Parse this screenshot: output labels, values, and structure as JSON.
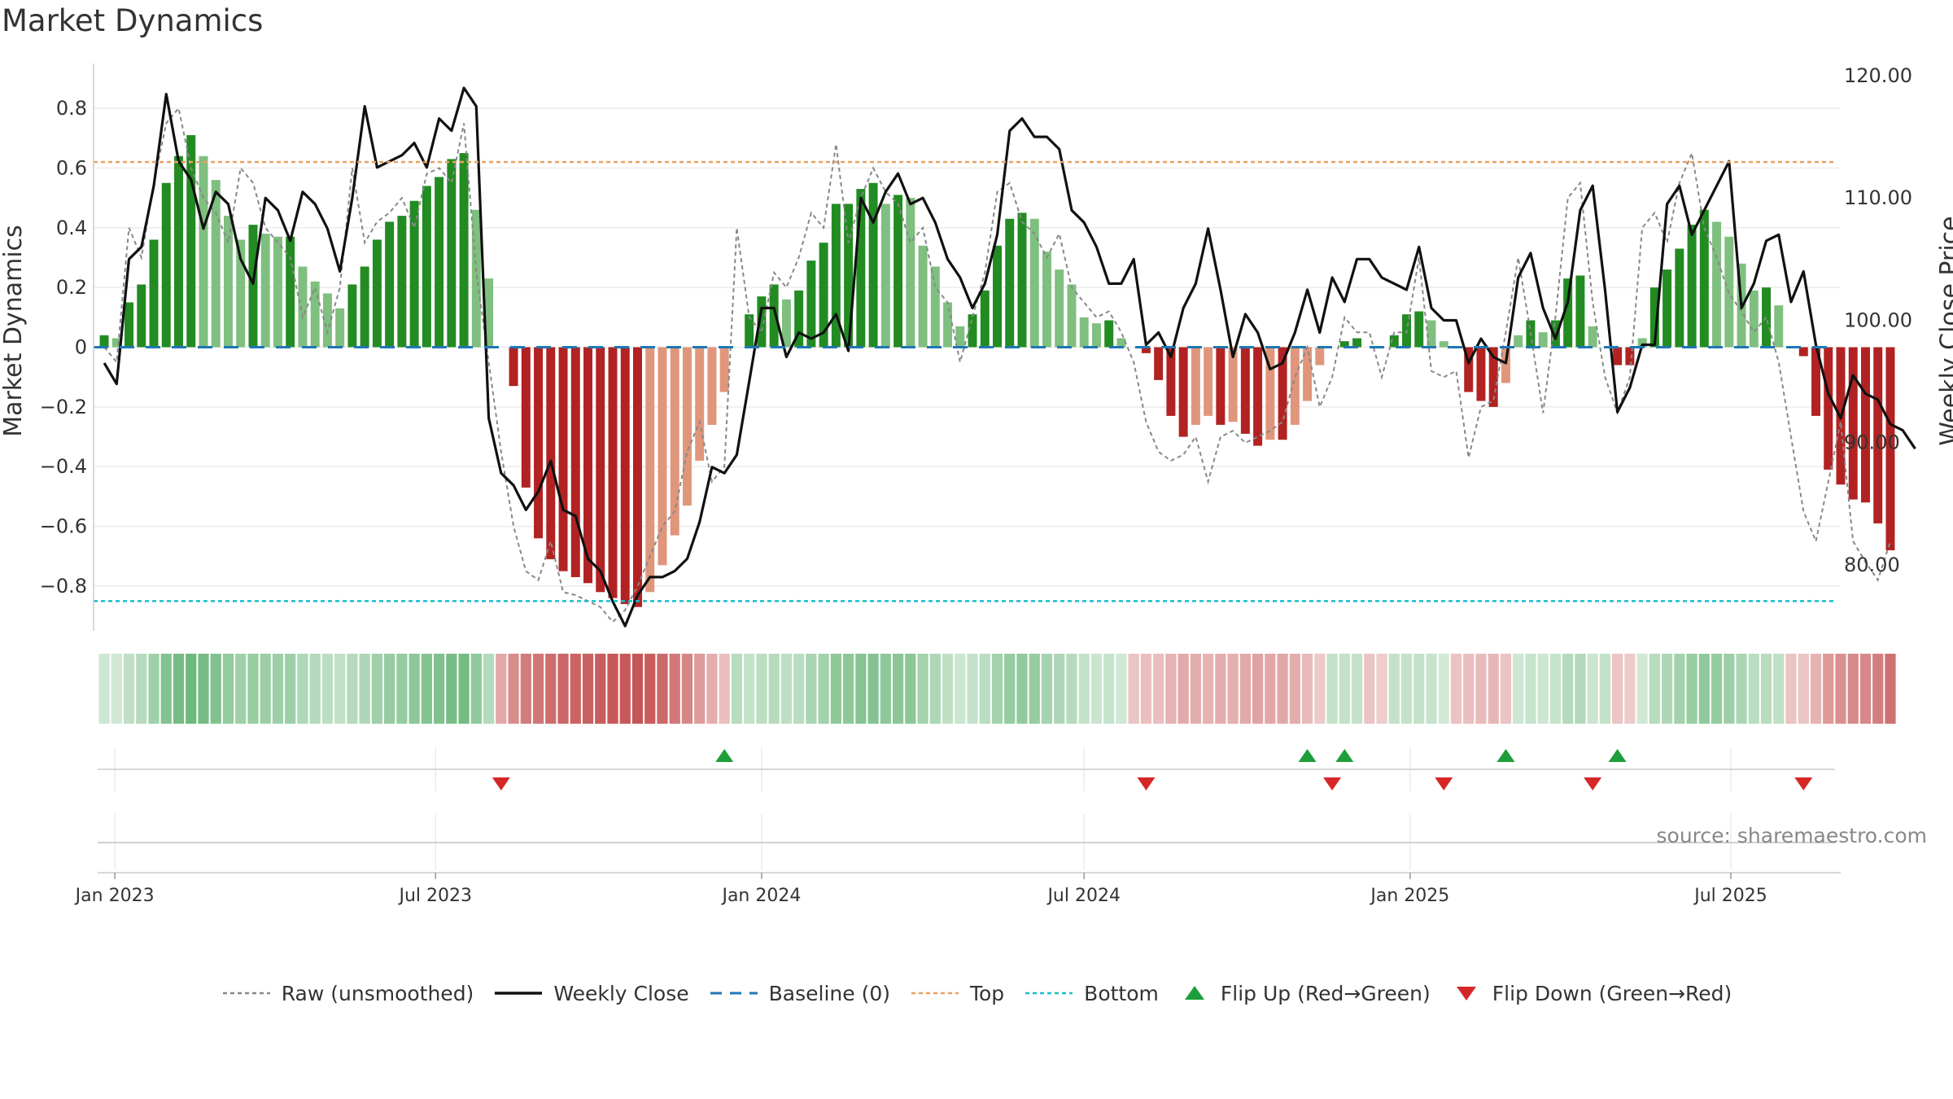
{
  "title": "Market Dynamics",
  "source": "source: sharemaestro.com",
  "colors": {
    "green_strong": "#228b22",
    "green_light": "#7fbf7f",
    "red_strong": "#b22222",
    "red_light": "#e0967a",
    "close_line": "#111111",
    "raw_line": "#888888",
    "baseline": "#1f77b4",
    "top": "#e8a060",
    "bottom": "#17becf",
    "flip_up": "#1e9e3a",
    "flip_down": "#d62728"
  },
  "legend": [
    {
      "key": "raw",
      "label": "Raw (unsmoothed)",
      "icon": "dotted-line"
    },
    {
      "key": "close",
      "label": "Weekly Close",
      "icon": "solid-line"
    },
    {
      "key": "baseline",
      "label": "Baseline (0)",
      "icon": "dashed-line"
    },
    {
      "key": "top",
      "label": "Top",
      "icon": "dotted-line"
    },
    {
      "key": "bottom",
      "label": "Bottom",
      "icon": "dotted-line"
    },
    {
      "key": "flip_up",
      "label": "Flip Up (Red→Green)",
      "icon": "triangle-up"
    },
    {
      "key": "flip_down",
      "label": "Flip Down (Green→Red)",
      "icon": "triangle-down"
    }
  ],
  "chart_data": {
    "type": "bar",
    "title": "Market Dynamics",
    "ylabel": "Market Dynamics",
    "y2label": "Weekly Close Price",
    "ylim": [
      -0.95,
      0.95
    ],
    "y2lim": [
      74.6,
      121.0
    ],
    "yticks": [
      0.8,
      0.6,
      0.4,
      0.2,
      0,
      -0.2,
      -0.4,
      -0.6,
      -0.8
    ],
    "ytick_labels": [
      "0.8",
      "0.6",
      "0.4",
      "0.2",
      "0",
      "−0.2",
      "−0.4",
      "−0.6",
      "−0.8"
    ],
    "y2ticks": [
      120,
      110,
      100,
      90,
      80
    ],
    "y2tick_labels": [
      "120.00",
      "110.00",
      "100.00",
      "90.00",
      "80.00"
    ],
    "xticks": [
      "2023-01-01",
      "2023-07-01",
      "2024-01-01",
      "2024-07-01",
      "2025-01-01",
      "2025-07-01"
    ],
    "xtick_labels": [
      "Jan 2023",
      "Jul 2023",
      "Jan 2024",
      "Jul 2024",
      "Jan 2025",
      "Jul 2025"
    ],
    "first_week": "2022-12-26",
    "weeks": 144,
    "top_level": 0.62,
    "bottom_level": -0.85,
    "baseline": 0,
    "grid": true,
    "legend_position": "bottom",
    "bar_values": [
      0.04,
      0.03,
      0.15,
      0.21,
      0.36,
      0.55,
      0.64,
      0.71,
      0.64,
      0.56,
      0.44,
      0.36,
      0.41,
      0.38,
      0.37,
      0.37,
      0.27,
      0.22,
      0.18,
      0.13,
      0.21,
      0.27,
      0.36,
      0.42,
      0.44,
      0.49,
      0.54,
      0.57,
      0.63,
      0.65,
      0.46,
      0.23,
      0,
      -0.13,
      -0.47,
      -0.64,
      -0.71,
      -0.75,
      -0.77,
      -0.79,
      -0.82,
      -0.84,
      -0.86,
      -0.87,
      -0.82,
      -0.73,
      -0.63,
      -0.53,
      -0.38,
      -0.26,
      -0.15,
      0,
      0.11,
      0.17,
      0.21,
      0.16,
      0.19,
      0.29,
      0.35,
      0.48,
      0.48,
      0.53,
      0.55,
      0.48,
      0.51,
      0.5,
      0.34,
      0.27,
      0.15,
      0.07,
      0.11,
      0.19,
      0.34,
      0.43,
      0.45,
      0.43,
      0.32,
      0.26,
      0.21,
      0.1,
      0.08,
      0.09,
      0.03,
      0,
      -0.02,
      -0.11,
      -0.23,
      -0.3,
      -0.26,
      -0.23,
      -0.26,
      -0.25,
      -0.29,
      -0.33,
      -0.31,
      -0.31,
      -0.26,
      -0.18,
      -0.06,
      0,
      0.02,
      0.03,
      0,
      0,
      0.04,
      0.11,
      0.12,
      0.09,
      0.02,
      0,
      -0.15,
      -0.18,
      -0.2,
      -0.12,
      0.04,
      0.09,
      0.05,
      0.09,
      0.23,
      0.24,
      0.07,
      0,
      -0.06,
      -0.06,
      0.03,
      0.2,
      0.26,
      0.33,
      0.41,
      0.46,
      0.42,
      0.37,
      0.28,
      0.19,
      0.2,
      0.14,
      0,
      -0.03,
      -0.23,
      -0.41,
      -0.46,
      -0.51,
      -0.52,
      -0.59,
      -0.68
    ],
    "weekly_close": [
      96.5,
      94.8,
      105.0,
      106.0,
      111.0,
      118.5,
      113.0,
      111.5,
      107.5,
      110.5,
      109.5,
      105.0,
      103.0,
      110.0,
      109.0,
      106.5,
      110.5,
      109.5,
      107.5,
      104.0,
      110.0,
      117.5,
      112.5,
      113.0,
      113.5,
      114.5,
      112.5,
      116.5,
      115.5,
      119.0,
      117.5,
      92.0,
      87.5,
      86.5,
      84.5,
      86.0,
      88.5,
      84.5,
      84.0,
      80.5,
      79.5,
      77.0,
      75.0,
      77.5,
      79.0,
      79.0,
      79.5,
      80.5,
      83.5,
      88.0,
      87.5,
      89.0,
      95.0,
      101.0,
      101.0,
      97.0,
      99.0,
      98.5,
      99.0,
      100.5,
      97.5,
      110.0,
      108.0,
      110.5,
      112.0,
      109.5,
      110.0,
      108.0,
      105.0,
      103.5,
      101.0,
      103.0,
      107.0,
      115.5,
      116.5,
      115.0,
      115.0,
      114.0,
      109.0,
      108.0,
      106.0,
      103.0,
      103.0,
      105.0,
      98.0,
      99.0,
      97.0,
      101.0,
      103.0,
      107.5,
      102.5,
      97.0,
      100.5,
      99.0,
      96.0,
      96.5,
      99.0,
      102.5,
      99.0,
      103.5,
      101.5,
      105.0,
      105.0,
      103.5,
      103.0,
      102.5,
      106.0,
      101.0,
      100.0,
      100.0,
      96.5,
      98.5,
      97.0,
      96.5,
      103.5,
      105.5,
      101.0,
      98.5,
      101.5,
      109.0,
      111.0,
      102.5,
      92.5,
      94.5,
      98.0,
      98.0,
      109.5,
      111.0,
      107.0,
      109.0,
      111.0,
      113.0,
      101.0,
      103.0,
      106.5,
      107.0,
      101.5,
      104.0,
      98.0,
      94.0,
      92.0,
      95.5,
      94.0,
      93.5,
      91.5,
      91.0,
      89.5
    ],
    "raw_values": [
      0.0,
      -0.05,
      0.4,
      0.3,
      0.55,
      0.75,
      0.8,
      0.6,
      0.5,
      0.45,
      0.35,
      0.6,
      0.55,
      0.4,
      0.35,
      0.3,
      0.1,
      0.2,
      0.05,
      0.2,
      0.6,
      0.35,
      0.42,
      0.45,
      0.5,
      0.4,
      0.58,
      0.6,
      0.55,
      0.75,
      0.25,
      -0.05,
      -0.35,
      -0.6,
      -0.75,
      -0.78,
      -0.65,
      -0.82,
      -0.83,
      -0.85,
      -0.87,
      -0.92,
      -0.88,
      -0.8,
      -0.7,
      -0.6,
      -0.55,
      -0.35,
      -0.25,
      -0.45,
      -0.4,
      0.4,
      0.1,
      0.05,
      0.25,
      0.2,
      0.3,
      0.45,
      0.4,
      0.68,
      0.35,
      0.5,
      0.6,
      0.52,
      0.48,
      0.35,
      0.4,
      0.2,
      0.15,
      -0.05,
      0.1,
      0.25,
      0.52,
      0.55,
      0.42,
      0.38,
      0.3,
      0.38,
      0.2,
      0.15,
      0.1,
      0.12,
      0.05,
      -0.05,
      -0.25,
      -0.35,
      -0.38,
      -0.36,
      -0.3,
      -0.45,
      -0.3,
      -0.28,
      -0.32,
      -0.3,
      -0.28,
      -0.25,
      -0.1,
      0.0,
      -0.2,
      -0.1,
      0.1,
      0.05,
      0.05,
      -0.1,
      0.05,
      0.05,
      0.3,
      -0.08,
      -0.1,
      -0.08,
      -0.37,
      -0.2,
      -0.18,
      0.05,
      0.3,
      0.05,
      -0.22,
      0.1,
      0.5,
      0.55,
      0.15,
      -0.1,
      -0.22,
      -0.1,
      0.4,
      0.45,
      0.35,
      0.55,
      0.65,
      0.4,
      0.3,
      0.18,
      0.12,
      0.05,
      0.1,
      -0.05,
      -0.3,
      -0.55,
      -0.65,
      -0.45,
      -0.25,
      -0.65,
      -0.72,
      -0.78,
      -0.65
    ],
    "heat_values": [
      0.04,
      0.03,
      0.15,
      0.21,
      0.36,
      0.55,
      0.64,
      0.71,
      0.64,
      0.56,
      0.44,
      0.36,
      0.41,
      0.38,
      0.37,
      0.37,
      0.27,
      0.22,
      0.18,
      0.13,
      0.21,
      0.27,
      0.36,
      0.42,
      0.44,
      0.49,
      0.54,
      0.57,
      0.63,
      0.65,
      0.46,
      0.23,
      -0.3,
      -0.5,
      -0.6,
      -0.64,
      -0.71,
      -0.75,
      -0.77,
      -0.79,
      -0.82,
      -0.84,
      -0.86,
      -0.87,
      -0.82,
      -0.73,
      -0.63,
      -0.53,
      -0.38,
      -0.26,
      -0.15,
      0.2,
      0.11,
      0.17,
      0.21,
      0.16,
      0.19,
      0.29,
      0.35,
      0.48,
      0.48,
      0.53,
      0.55,
      0.48,
      0.51,
      0.5,
      0.34,
      0.27,
      0.15,
      0.07,
      0.11,
      0.19,
      0.34,
      0.43,
      0.45,
      0.43,
      0.32,
      0.26,
      0.21,
      0.1,
      0.08,
      0.09,
      0.03,
      -0.1,
      -0.15,
      -0.15,
      -0.23,
      -0.3,
      -0.26,
      -0.23,
      -0.26,
      -0.25,
      -0.29,
      -0.33,
      -0.31,
      -0.31,
      -0.26,
      -0.18,
      -0.06,
      0.1,
      0.12,
      0.1,
      -0.1,
      -0.05,
      0.1,
      0.11,
      0.12,
      0.09,
      0.02,
      -0.12,
      -0.15,
      -0.18,
      -0.2,
      -0.12,
      0.04,
      0.09,
      0.05,
      0.09,
      0.23,
      0.24,
      0.07,
      0.1,
      -0.1,
      -0.06,
      0.03,
      0.2,
      0.26,
      0.33,
      0.41,
      0.46,
      0.42,
      0.37,
      0.28,
      0.19,
      0.2,
      0.14,
      -0.1,
      -0.1,
      -0.23,
      -0.41,
      -0.46,
      -0.51,
      -0.52,
      -0.59,
      -0.68
    ],
    "flip_up_dates": [
      "2023-12-11",
      "2024-11-04",
      "2024-11-25",
      "2025-02-24",
      "2025-04-28"
    ],
    "flip_down_dates": [
      "2023-08-07",
      "2024-08-05",
      "2024-11-18",
      "2025-01-20",
      "2025-04-14",
      "2025-08-11"
    ]
  }
}
